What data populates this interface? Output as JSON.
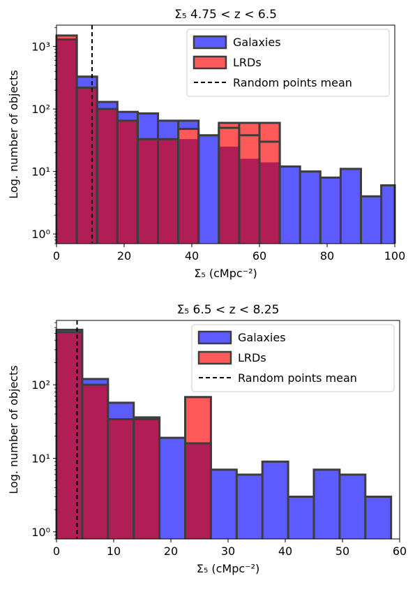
{
  "chart_data": [
    {
      "type": "bar",
      "title": "Σ₅ 4.75 < z < 6.5",
      "xlabel": "Σ₅ (cMpc⁻²)",
      "ylabel": "Log. number of objects",
      "xlim": [
        0,
        100
      ],
      "ylim": [
        0.7,
        2200
      ],
      "yscale": "log",
      "xticks": [
        0,
        20,
        40,
        60,
        80,
        100
      ],
      "yticks": [
        {
          "value": 1,
          "label": "10⁰"
        },
        {
          "value": 10,
          "label": "10¹"
        },
        {
          "value": 100,
          "label": "10²"
        },
        {
          "value": 1000,
          "label": "10³"
        }
      ],
      "grid": false,
      "legend": "top-right",
      "series": [
        {
          "name": "Galaxies",
          "color": "#5b5bff",
          "bins": [
            [
              0,
              6,
              1300
            ],
            [
              6,
              12,
              330
            ],
            [
              12,
              18,
              130
            ],
            [
              18,
              24,
              90
            ],
            [
              24,
              30,
              85
            ],
            [
              30,
              36,
              65
            ],
            [
              36,
              42,
              65
            ],
            [
              42,
              48,
              38
            ],
            [
              48,
              54,
              50
            ],
            [
              54,
              60,
              38
            ],
            [
              60,
              66,
              30
            ],
            [
              66,
              72,
              12
            ],
            [
              72,
              78,
              10
            ],
            [
              78,
              84,
              8
            ],
            [
              84,
              90,
              11
            ],
            [
              90,
              96,
              4
            ],
            [
              96,
              100,
              6
            ]
          ]
        },
        {
          "name": "LRDs",
          "color": "#ff5a5a",
          "bins": [
            [
              0,
              6,
              1500
            ],
            [
              6,
              12,
              220
            ],
            [
              12,
              18,
              100
            ],
            [
              18,
              24,
              65
            ],
            [
              24,
              30,
              33
            ],
            [
              30,
              36,
              33
            ],
            [
              36,
              42,
              48
            ],
            [
              42,
              48,
              0
            ],
            [
              48,
              54,
              60
            ],
            [
              54,
              60,
              60
            ],
            [
              60,
              66,
              60
            ]
          ]
        }
      ],
      "overlap_bins": [
        [
          0,
          6,
          1300
        ],
        [
          6,
          12,
          220
        ],
        [
          12,
          18,
          100
        ],
        [
          18,
          24,
          65
        ],
        [
          24,
          30,
          33
        ],
        [
          30,
          36,
          33
        ],
        [
          36,
          42,
          33
        ],
        [
          48,
          54,
          25
        ],
        [
          54,
          60,
          16
        ],
        [
          60,
          66,
          14
        ]
      ],
      "reference_lines": [
        {
          "name": "Random points mean",
          "x": 10.5,
          "style": "dashed",
          "color": "#000000"
        }
      ]
    },
    {
      "type": "bar",
      "title": "Σ₅ 6.5 < z < 8.25",
      "xlabel": "Σ₅ (cMpc⁻²)",
      "ylabel": "Log. number of objects",
      "xlim": [
        0,
        60
      ],
      "ylim": [
        0.8,
        750
      ],
      "yscale": "log",
      "xticks": [
        0,
        10,
        20,
        30,
        40,
        50,
        60
      ],
      "yticks": [
        {
          "value": 1,
          "label": "10⁰"
        },
        {
          "value": 10,
          "label": "10¹"
        },
        {
          "value": 100,
          "label": "10²"
        }
      ],
      "grid": false,
      "legend": "top-right",
      "series": [
        {
          "name": "Galaxies",
          "color": "#5b5bff",
          "bins": [
            [
              0,
              4.5,
              560
            ],
            [
              4.5,
              9,
              120
            ],
            [
              9,
              13.5,
              57
            ],
            [
              13.5,
              18,
              36
            ],
            [
              18,
              22.5,
              19
            ],
            [
              22.5,
              27,
              16
            ],
            [
              27,
              31.5,
              7
            ],
            [
              31.5,
              36,
              6
            ],
            [
              36,
              40.5,
              9
            ],
            [
              40.5,
              45,
              3
            ],
            [
              45,
              49.5,
              7
            ],
            [
              49.5,
              54,
              6
            ],
            [
              54,
              58.5,
              3
            ]
          ]
        },
        {
          "name": "LRDs",
          "color": "#ff5a5a",
          "bins": [
            [
              0,
              4.5,
              520
            ],
            [
              4.5,
              9,
              100
            ],
            [
              9,
              13.5,
              34
            ],
            [
              13.5,
              18,
              34
            ],
            [
              22.5,
              27,
              68
            ]
          ]
        }
      ],
      "overlap_bins": [
        [
          0,
          4.5,
          520
        ],
        [
          4.5,
          9,
          100
        ],
        [
          9,
          13.5,
          34
        ],
        [
          13.5,
          18,
          34
        ],
        [
          22.5,
          27,
          16
        ]
      ],
      "reference_lines": [
        {
          "name": "Random points mean",
          "x": 3.6,
          "style": "dashed",
          "color": "#000000"
        }
      ]
    }
  ]
}
